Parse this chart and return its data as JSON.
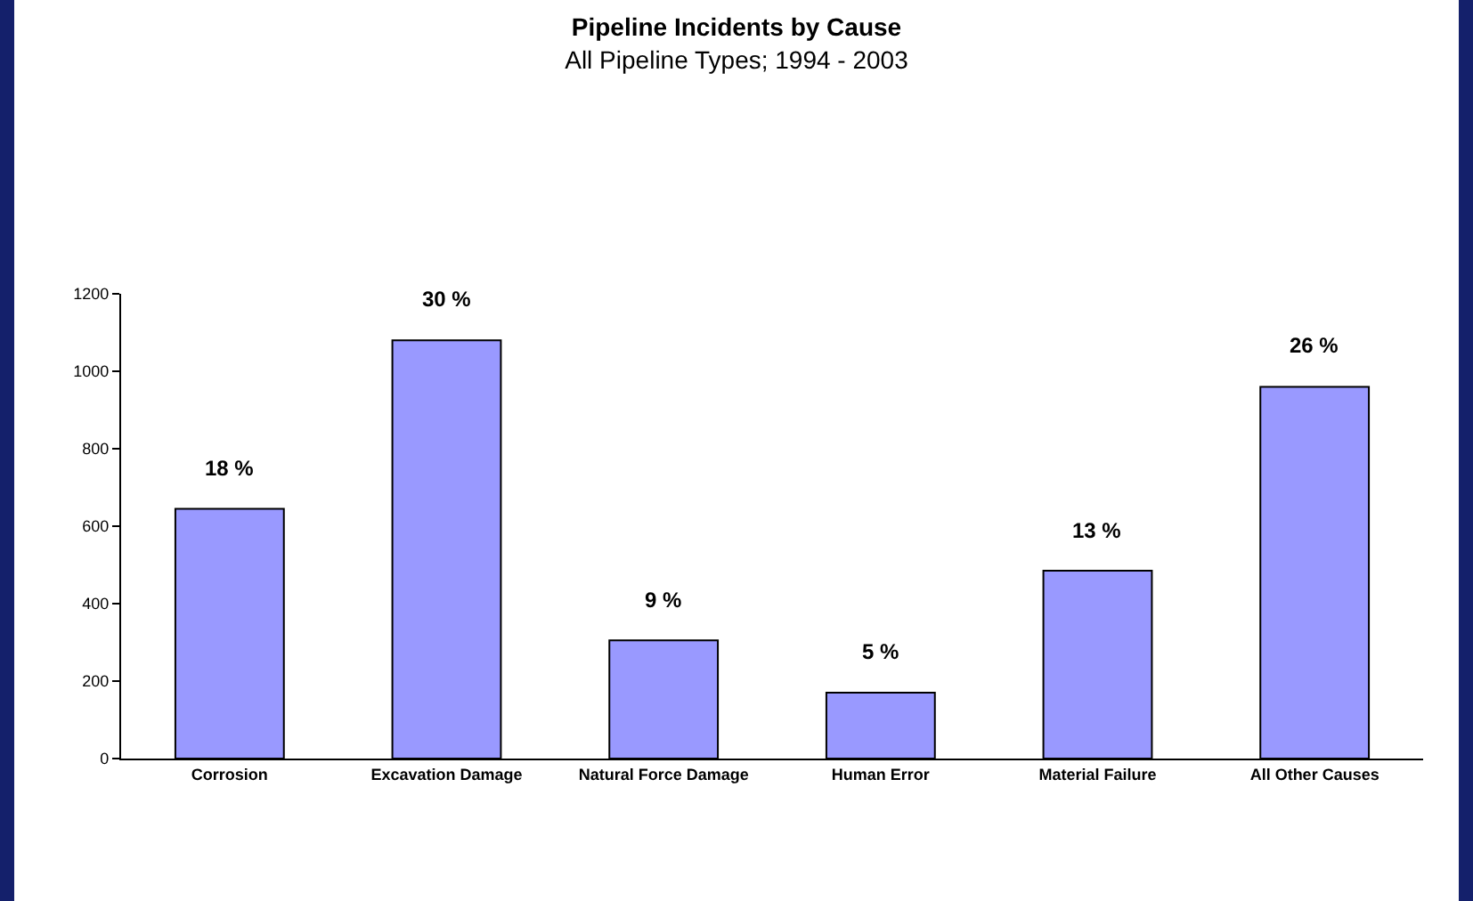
{
  "chart_data": {
    "type": "bar",
    "title": "Pipeline Incidents by Cause",
    "subtitle": "All Pipeline Types; 1994 - 2003",
    "categories": [
      "Corrosion",
      "Excavation Damage",
      "Natural Force Damage",
      "Human Error",
      "Material Failure",
      "All Other Causes"
    ],
    "values": [
      645,
      1080,
      305,
      170,
      485,
      960
    ],
    "annotations": [
      {
        "text": "18 %",
        "x": "Corrosion",
        "y": 645
      },
      {
        "text": "30 %",
        "x": "Excavation Damage",
        "y": 1080
      },
      {
        "text": "9 %",
        "x": "Natural Force Damage",
        "y": 305
      },
      {
        "text": "5 %",
        "x": "Human Error",
        "y": 170
      },
      {
        "text": "13 %",
        "x": "Material Failure",
        "y": 485
      },
      {
        "text": "26 %",
        "x": "All Other Causes",
        "y": 960
      }
    ],
    "color": "#9999ff",
    "ylim": [
      0,
      1200
    ],
    "yticks": [
      0,
      200,
      400,
      600,
      800,
      1000,
      1200
    ],
    "grid": false
  }
}
